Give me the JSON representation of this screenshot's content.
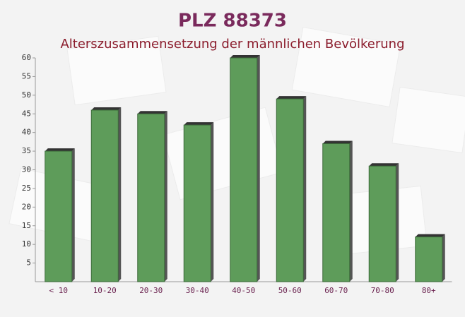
{
  "chart_data": {
    "type": "bar",
    "title": "PLZ 88373",
    "subtitle": "Alterszusammensetzung der männlichen Bevölkerung",
    "categories": [
      "< 10",
      "10-20",
      "20-30",
      "30-40",
      "40-50",
      "50-60",
      "60-70",
      "70-80",
      "80+"
    ],
    "values": [
      35,
      46,
      45,
      42,
      60,
      49,
      37,
      31,
      12
    ],
    "color": "#5e9c5a",
    "ylim": [
      0,
      60
    ],
    "yticks": [
      5,
      10,
      15,
      20,
      25,
      30,
      35,
      40,
      45,
      50,
      55,
      60
    ],
    "grid": false
  }
}
